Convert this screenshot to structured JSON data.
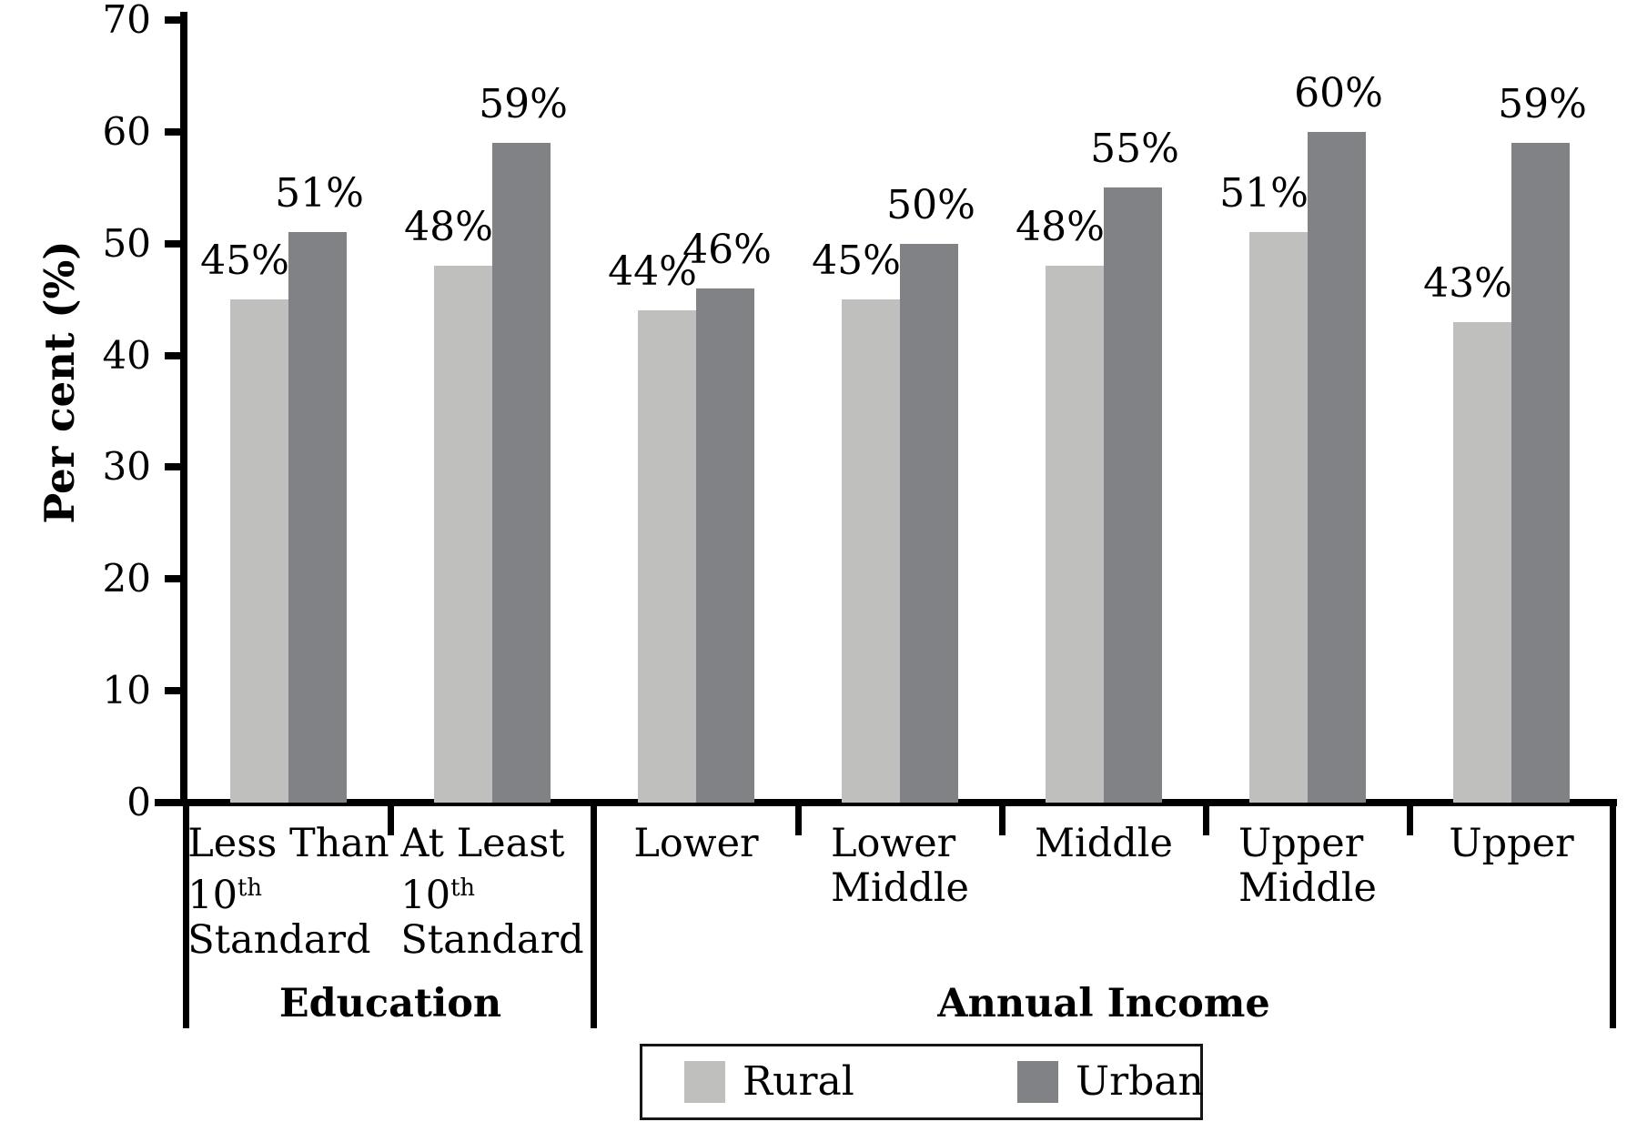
{
  "chart_data": {
    "type": "bar",
    "title": "",
    "ylabel": "Per cent (%)",
    "xlabel": "",
    "ylim": [
      0,
      70
    ],
    "yticks": [
      0,
      10,
      20,
      30,
      40,
      50,
      60,
      70
    ],
    "grid": false,
    "value_suffix": "%",
    "legend_position": "bottom-center",
    "axis_color": "#000000",
    "text_color": "#000000",
    "series": [
      {
        "name": "Rural",
        "color": "#bfbfbd",
        "values": [
          45,
          48,
          44,
          45,
          48,
          51,
          43
        ],
        "labels": [
          "45%",
          "48%",
          "44%",
          "45%",
          "48%",
          "51%",
          "43%"
        ]
      },
      {
        "name": "Urban",
        "color": "#808285",
        "values": [
          51,
          59,
          46,
          50,
          55,
          60,
          59
        ],
        "labels": [
          "51%",
          "59%",
          "46%",
          "50%",
          "55%",
          "60%",
          "59%"
        ]
      }
    ],
    "groups": [
      {
        "label": "Education",
        "categories": [
          {
            "lines": [
              [
                {
                  "t": "Less Than"
                }
              ],
              [
                {
                  "t": "10"
                },
                {
                  "t": "th",
                  "sup": true
                }
              ],
              [
                {
                  "t": "Standard"
                }
              ]
            ]
          },
          {
            "lines": [
              [
                {
                  "t": "At Least"
                }
              ],
              [
                {
                  "t": "10"
                },
                {
                  "t": "th",
                  "sup": true
                }
              ],
              [
                {
                  "t": "Standard"
                }
              ]
            ]
          }
        ]
      },
      {
        "label": "Annual Income",
        "categories": [
          {
            "lines": [
              [
                {
                  "t": "Lower"
                }
              ]
            ]
          },
          {
            "lines": [
              [
                {
                  "t": "Lower"
                }
              ],
              [
                {
                  "t": "Middle"
                }
              ]
            ]
          },
          {
            "lines": [
              [
                {
                  "t": "Middle"
                }
              ]
            ]
          },
          {
            "lines": [
              [
                {
                  "t": "Upper"
                }
              ],
              [
                {
                  "t": "Middle"
                }
              ]
            ]
          },
          {
            "lines": [
              [
                {
                  "t": "Upper"
                }
              ]
            ]
          }
        ]
      }
    ],
    "legend": {
      "items": [
        {
          "name": "Rural",
          "color": "#bfbfbd"
        },
        {
          "name": "Urban",
          "color": "#808285"
        }
      ]
    }
  }
}
